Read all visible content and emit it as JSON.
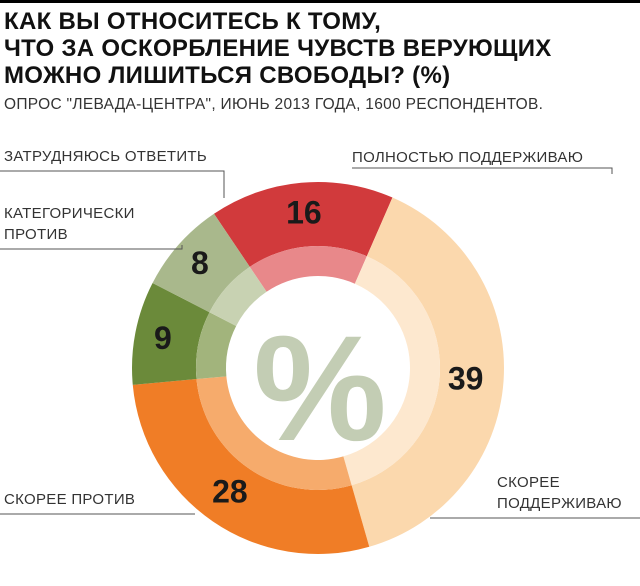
{
  "title_lines": [
    "КАК ВЫ ОТНОСИТЕСЬ К ТОМУ,",
    "ЧТО ЗА ОСКОРБЛЕНИЕ ЧУВСТВ ВЕРУЮЩИХ",
    "МОЖНО ЛИШИТЬСЯ СВОБОДЫ? (%)"
  ],
  "subtitle": "ОПРОС \"ЛЕВАДА-ЦЕНТРА\", ИЮНЬ 2013 ГОДА, 1600 РЕСПОНДЕНТОВ.",
  "center_symbol": "%",
  "chart_data": {
    "type": "pie",
    "variant": "donut",
    "title": "КАК ВЫ ОТНОСИТЕСЬ К ТОМУ, ЧТО ЗА ОСКОРБЛЕНИЕ ЧУВСТВ ВЕРУЮЩИХ МОЖНО ЛИШИТЬСЯ СВОБОДЫ? (%)",
    "subtitle": "ОПРОС \"ЛЕВАДА-ЦЕНТРА\", ИЮНЬ 2013 ГОДА, 1600 РЕСПОНДЕНТОВ.",
    "unit": "%",
    "slices": [
      {
        "label": "ПОЛНОСТЬЮ ПОДДЕРЖИВАЮ",
        "label_lines": [
          "ПОЛНОСТЬЮ ПОДДЕРЖИВАЮ"
        ],
        "value": 16,
        "color": "#d13a3c",
        "inner_color": "#e8888a"
      },
      {
        "label": "СКОРЕЕ ПОДДЕРЖИВАЮ",
        "label_lines": [
          "СКОРЕЕ",
          "ПОДДЕРЖИВАЮ"
        ],
        "value": 39,
        "color": "#fbd8ad",
        "inner_color": "#fde8cf"
      },
      {
        "label": "СКОРЕЕ ПРОТИВ",
        "label_lines": [
          "СКОРЕЕ ПРОТИВ"
        ],
        "value": 28,
        "color": "#f07d26",
        "inner_color": "#f6ab6c"
      },
      {
        "label": "КАТЕГОРИЧЕСКИ ПРОТИВ",
        "label_lines": [
          "КАТЕГОРИЧЕСКИ",
          "ПРОТИВ"
        ],
        "value": 9,
        "color": "#6b8a3a",
        "inner_color": "#a2b47c"
      },
      {
        "label": "ЗАТРУДНЯЮСЬ ОТВЕТИТЬ",
        "label_lines": [
          "ЗАТРУДНЯЮСЬ ОТВЕТИТЬ"
        ],
        "value": 8,
        "color": "#a9b88c",
        "inner_color": "#c8d2b2"
      }
    ],
    "start": "top-left, clockwise"
  }
}
